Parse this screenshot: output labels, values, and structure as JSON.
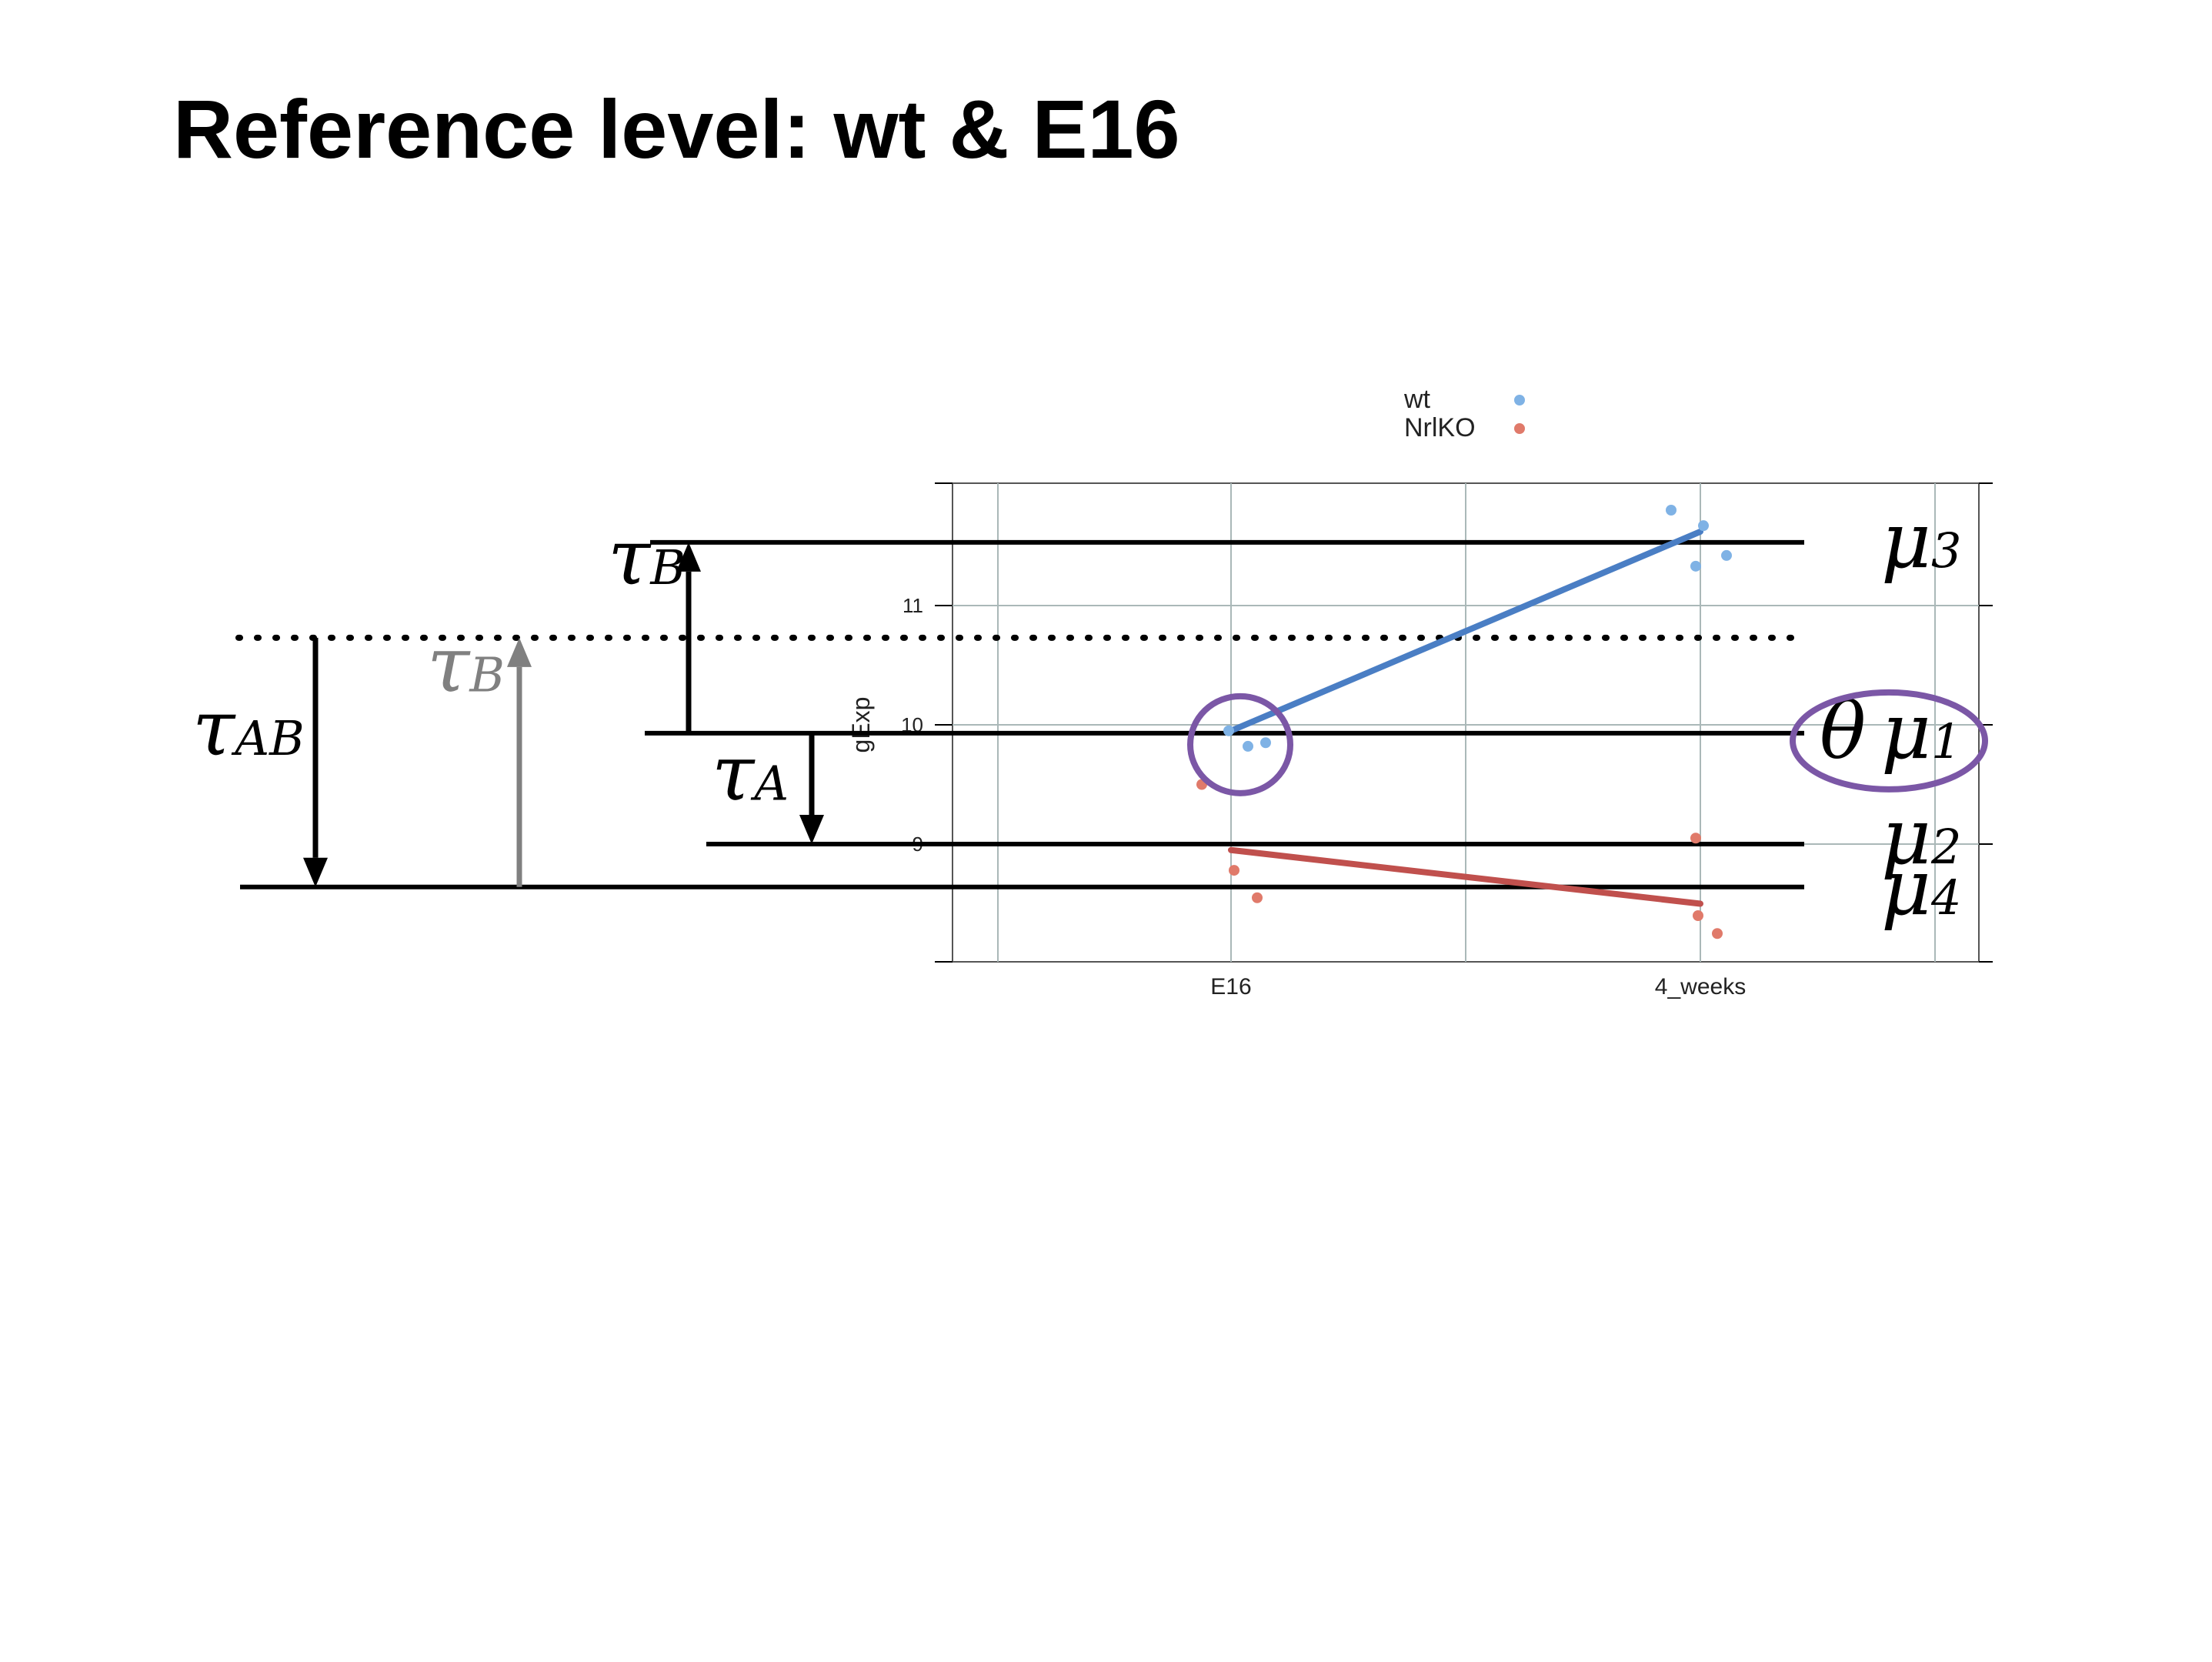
{
  "title": "Reference level: wt & E16",
  "chart_data": {
    "type": "scatter",
    "ylabel": "gExp",
    "xlabel": "",
    "categories": [
      "E16",
      "4_weeks"
    ],
    "yticks": [
      9,
      10,
      11
    ],
    "ylim": [
      8.0,
      12.0
    ],
    "grid": true,
    "legend_position": "top",
    "series": [
      {
        "name": "wt",
        "color": "#7fb2e5",
        "line_color": "#4a7ec4",
        "points": [
          {
            "x": "E16",
            "y": 9.95
          },
          {
            "x": "E16",
            "y": 9.82
          },
          {
            "x": "E16",
            "y": 9.85
          },
          {
            "x": "4_weeks",
            "y": 11.8
          },
          {
            "x": "4_weeks",
            "y": 11.67
          },
          {
            "x": "4_weeks",
            "y": 11.42
          },
          {
            "x": "4_weeks",
            "y": 11.33
          }
        ],
        "means": [
          9.95,
          11.62
        ]
      },
      {
        "name": "NrlKO",
        "color": "#e07a6a",
        "line_color": "#c0504d",
        "points": [
          {
            "x": "E16",
            "y": 9.5
          },
          {
            "x": "E16",
            "y": 8.78
          },
          {
            "x": "E16",
            "y": 8.55
          },
          {
            "x": "4_weeks",
            "y": 9.05
          },
          {
            "x": "4_weeks",
            "y": 8.4
          },
          {
            "x": "4_weeks",
            "y": 8.25
          }
        ],
        "means": [
          8.95,
          8.5
        ]
      }
    ]
  },
  "annotations": {
    "levels": [
      {
        "label": "μ",
        "sub": "3",
        "value": 11.53
      },
      {
        "label": "μ",
        "sub": "1",
        "value": 9.93
      },
      {
        "label": "μ",
        "sub": "2",
        "value": 9.0
      },
      {
        "label": "μ",
        "sub": "4",
        "value": 8.64
      }
    ],
    "theta_label": "θ",
    "dotted_level": 10.73,
    "effects": [
      {
        "label": "τ",
        "sub": "B",
        "color": "#000000",
        "from": 9.93,
        "to": 11.53
      },
      {
        "label": "τ",
        "sub": "B",
        "color": "#808080",
        "from": 8.64,
        "to": 10.73
      },
      {
        "label": "τ",
        "sub": "AB",
        "color": "#000000",
        "from": 10.73,
        "to": 8.64
      },
      {
        "label": "τ",
        "sub": "A",
        "color": "#000000",
        "from": 9.93,
        "to": 9.0
      }
    ],
    "highlight_color": "#7b57a6"
  }
}
